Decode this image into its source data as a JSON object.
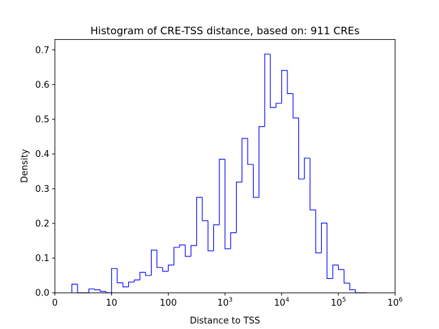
{
  "chart_data": {
    "type": "histogram",
    "title": "Histogram of CRE-TSS distance, based on: 911 CREs",
    "xlabel": "Distance to TSS",
    "ylabel": "Density",
    "x_ticks": [
      {
        "value": 0,
        "label": "0",
        "sup": ""
      },
      {
        "value": 1,
        "label": "10",
        "sup": ""
      },
      {
        "value": 2,
        "label": "100",
        "sup": ""
      },
      {
        "value": 3,
        "label": "10",
        "sup": "3"
      },
      {
        "value": 4,
        "label": "10",
        "sup": "4"
      },
      {
        "value": 5,
        "label": "10",
        "sup": "5"
      },
      {
        "value": 6,
        "label": "10",
        "sup": "6"
      }
    ],
    "y_ticks": [
      "0.0",
      "0.1",
      "0.2",
      "0.3",
      "0.4",
      "0.5",
      "0.6",
      "0.7"
    ],
    "xlim": [
      0,
      6
    ],
    "ylim": [
      0,
      0.73
    ],
    "color": "#0000ff",
    "bin_edges": [
      0.3,
      0.4,
      0.5,
      0.6,
      0.7,
      0.8,
      0.9,
      1.0,
      1.1,
      1.2,
      1.3,
      1.4,
      1.5,
      1.6,
      1.7,
      1.8,
      1.9,
      2.0,
      2.1,
      2.2,
      2.3,
      2.4,
      2.5,
      2.6,
      2.7,
      2.8,
      2.9,
      3.0,
      3.1,
      3.2,
      3.3,
      3.4,
      3.5,
      3.6,
      3.7,
      3.8,
      3.9,
      4.0,
      4.1,
      4.2,
      4.3,
      4.4,
      4.5,
      4.6,
      4.7,
      4.8,
      4.9,
      5.0,
      5.1,
      5.2,
      5.3,
      5.4,
      5.5
    ],
    "densities": [
      0.025,
      0.0,
      0.0,
      0.011,
      0.009,
      0.004,
      0.0,
      0.07,
      0.029,
      0.017,
      0.031,
      0.037,
      0.059,
      0.05,
      0.123,
      0.073,
      0.062,
      0.08,
      0.131,
      0.138,
      0.105,
      0.136,
      0.275,
      0.208,
      0.121,
      0.196,
      0.385,
      0.127,
      0.173,
      0.319,
      0.445,
      0.37,
      0.275,
      0.479,
      0.688,
      0.534,
      0.546,
      0.641,
      0.574,
      0.504,
      0.328,
      0.388,
      0.239,
      0.115,
      0.201,
      0.041,
      0.08,
      0.067,
      0.028,
      0.009,
      0.0,
      0.0
    ]
  }
}
